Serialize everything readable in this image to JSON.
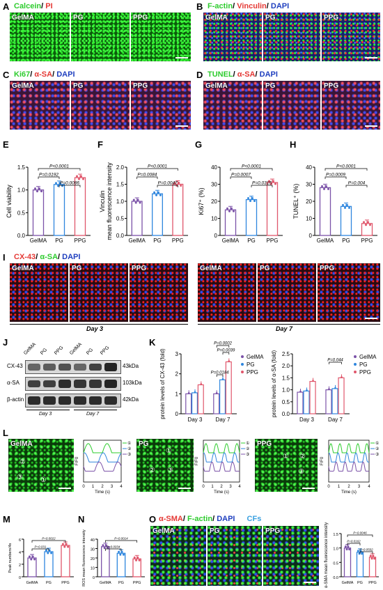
{
  "panels": {
    "A": {
      "letter": "A",
      "title_1": "Calcein",
      "title_sep": "/ ",
      "title_2": "PI",
      "images": [
        "GelMA",
        "PG",
        "PPG"
      ]
    },
    "B": {
      "letter": "B",
      "title_1": "F-actin",
      "title_sep": "/ ",
      "title_2": "Vinculin",
      "title_3": "DAPI",
      "images": [
        "GelMA",
        "PG",
        "PPG"
      ]
    },
    "C": {
      "letter": "C",
      "title_1": "Ki67",
      "title_2": "α-SA",
      "title_3": "DAPI",
      "images": [
        "GelMA",
        "PG",
        "PPG"
      ]
    },
    "D": {
      "letter": "D",
      "title_1": "TUNEL",
      "title_2": "α-SA",
      "title_3": "DAPI",
      "images": [
        "GelMA",
        "PG",
        "PPG"
      ]
    },
    "E": {
      "letter": "E"
    },
    "F": {
      "letter": "F"
    },
    "G": {
      "letter": "G"
    },
    "H": {
      "letter": "H"
    },
    "I": {
      "letter": "I",
      "title_1": "CX-43",
      "title_2": "α-SA",
      "title_3": "DAPI",
      "images": [
        "GelMA",
        "PG",
        "PPG"
      ],
      "day3": "Day 3",
      "day7": "Day 7"
    },
    "J": {
      "letter": "J",
      "lanes": [
        "GelMA",
        "PG",
        "PPG",
        "GelMA",
        "PG",
        "PPG"
      ],
      "rows": [
        "CX-43",
        "α-SA",
        "β-actin"
      ],
      "kda": [
        "43kDa",
        "103kDa",
        "42kDa"
      ],
      "day3": "Day 3",
      "day7": "Day 7"
    },
    "K": {
      "letter": "K"
    },
    "L": {
      "letter": "L",
      "groups": [
        "GelMA",
        "PG",
        "PPG"
      ],
      "cells": [
        "②",
        "③",
        "①",
        "①",
        "②",
        "③",
        "①",
        "②",
        "③"
      ]
    },
    "M": {
      "letter": "M"
    },
    "N": {
      "letter": "N"
    },
    "O": {
      "letter": "O",
      "title_1": "α-SMA",
      "title_2": "F-actin",
      "title_3": "DAPI",
      "title_cfs": "CFs",
      "images": [
        "GelMA",
        "PG",
        "PPG"
      ]
    }
  },
  "colors": {
    "gelma": "#7b52a8",
    "pg": "#2e86de",
    "ppg": "#e0566b",
    "green": "#2ecc2e",
    "red": "#e53935",
    "blue": "#1f3fbf"
  },
  "chart_data": [
    {
      "id": "E",
      "type": "bar",
      "categories": [
        "GelMA",
        "PG",
        "PPG"
      ],
      "values": [
        1.0,
        1.12,
        1.27
      ],
      "ylabel": "Cell viability",
      "ylim": [
        0,
        1.5
      ],
      "yticks": [
        "0.0",
        "0.5",
        "1.0",
        "1.5"
      ],
      "pvalues": [
        "P<0.0001",
        "P=0.0192",
        "P=0.0086"
      ]
    },
    {
      "id": "F",
      "type": "bar",
      "categories": [
        "GelMA",
        "PG",
        "PPG"
      ],
      "values": [
        1.0,
        1.22,
        1.5
      ],
      "ylabel_1": "Vinculin",
      "ylabel_2": "mean fluorescence intensity",
      "ylim": [
        0,
        2.0
      ],
      "yticks": [
        "0.0",
        "0.5",
        "1.0",
        "1.5",
        "2.0"
      ],
      "pvalues": [
        "P<0.0001",
        "P=0.0084",
        "P=0.0047"
      ]
    },
    {
      "id": "G",
      "type": "bar",
      "categories": [
        "GelMA",
        "PG",
        "PPG"
      ],
      "values": [
        15,
        21,
        31
      ],
      "ylabel": "Ki67⁺ (%)",
      "ylim": [
        0,
        40
      ],
      "yticks": [
        "0",
        "10",
        "20",
        "30",
        "40"
      ],
      "pvalues": [
        "P<0.0001",
        "P=0.0007",
        "P=0.0315"
      ]
    },
    {
      "id": "H",
      "type": "bar",
      "categories": [
        "GelMA",
        "PG",
        "PPG"
      ],
      "values": [
        28,
        17,
        7
      ],
      "ylabel": "TUNEL⁺ (%)",
      "ylim": [
        0,
        40
      ],
      "yticks": [
        "0",
        "10",
        "20",
        "30",
        "40"
      ],
      "pvalues": [
        "P<0.0001",
        "P=0.0009",
        "P=0.004"
      ]
    },
    {
      "id": "K1",
      "type": "bar",
      "categories": [
        "Day 3",
        "Day 7"
      ],
      "series": [
        {
          "name": "GelMA",
          "values": [
            1.0,
            1.0
          ]
        },
        {
          "name": "PG",
          "values": [
            1.05,
            1.7
          ]
        },
        {
          "name": "PPG",
          "values": [
            1.45,
            2.6
          ]
        }
      ],
      "ylabel": "protein levels of CX-43 (fold)",
      "ylim": [
        0,
        3
      ],
      "yticks": [
        "0",
        "1",
        "2",
        "3"
      ],
      "pvalues": [
        "P=0.0002",
        "P=0.0039",
        "P=0.0184"
      ]
    },
    {
      "id": "K2",
      "type": "bar",
      "categories": [
        "Day 3",
        "Day 7"
      ],
      "series": [
        {
          "name": "GelMA",
          "values": [
            0.9,
            1.0
          ]
        },
        {
          "name": "PG",
          "values": [
            0.95,
            1.05
          ]
        },
        {
          "name": "PPG",
          "values": [
            1.35,
            1.5
          ]
        }
      ],
      "ylabel": "protein levels of α-SA (fold)",
      "ylim": [
        0,
        2.5
      ],
      "yticks": [
        "0.0",
        "0.5",
        "1.0",
        "1.5",
        "2.0",
        "2.5"
      ],
      "pvalues": [
        "P=0.044"
      ]
    },
    {
      "id": "L1",
      "type": "line",
      "xlabel": "Time (s)",
      "ylabel": "F/F0",
      "xticks": [
        "0",
        "1",
        "2",
        "3",
        "4"
      ],
      "legend": [
        "①",
        "②",
        "③"
      ]
    },
    {
      "id": "L2",
      "type": "line",
      "xlabel": "Time (s)",
      "ylabel": "F/F0",
      "xticks": [
        "0",
        "1",
        "2",
        "3",
        "4"
      ],
      "legend": [
        "①",
        "②",
        "③"
      ]
    },
    {
      "id": "L3",
      "type": "line",
      "xlabel": "Time (s)",
      "ylabel": "F/F0",
      "xticks": [
        "0",
        "1",
        "2",
        "3",
        "4"
      ],
      "legend": [
        "①",
        "②",
        "③"
      ]
    },
    {
      "id": "M",
      "type": "bar",
      "categories": [
        "GelMA",
        "PG",
        "PPG"
      ],
      "values": [
        3,
        4,
        5
      ],
      "ylabel": "Peak numbers/4s",
      "ylim": [
        0,
        6
      ],
      "yticks": [
        "0",
        "2",
        "4",
        "6"
      ],
      "pvalues": [
        "P=0.0022",
        "P=0.031"
      ]
    },
    {
      "id": "N",
      "type": "bar",
      "categories": [
        "GelMA",
        "PG",
        "PPG"
      ],
      "values": [
        32,
        25,
        19
      ],
      "ylabel": "ROS mean fluorescence intensity",
      "ylim": [
        0,
        40
      ],
      "yticks": [
        "0",
        "10",
        "20",
        "30",
        "40"
      ],
      "pvalues": [
        "P=0.0014",
        "P=0.0034"
      ]
    },
    {
      "id": "O2",
      "type": "bar",
      "categories": [
        "GelMA",
        "PG",
        "PPG"
      ],
      "values": [
        1.0,
        0.85,
        0.68
      ],
      "ylabel": "α-SMA mean fluorescence intensity",
      "ylim": [
        0,
        1.5
      ],
      "yticks": [
        "0.0",
        "0.5",
        "1.0",
        "1.5"
      ],
      "pvalues": [
        "P=0.0046",
        "P=0.0162",
        "P=0.0502"
      ]
    }
  ]
}
